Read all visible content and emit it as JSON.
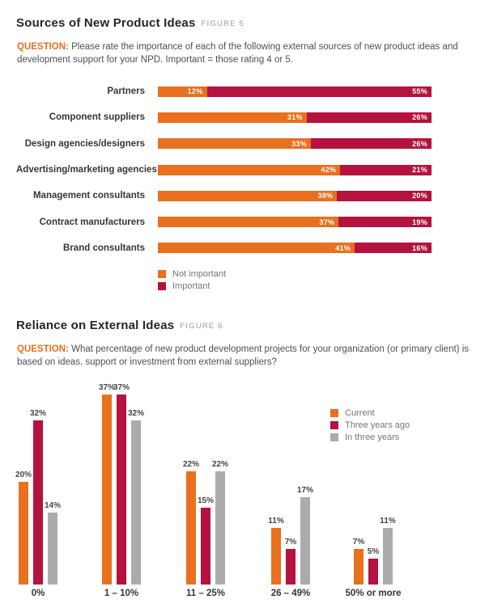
{
  "figure5": {
    "title": "Sources of New Product Ideas",
    "figure_label": "FIGURE 5",
    "question_label": "QUESTION:",
    "question_text": "Please rate the importance of each of the following external sources of new product ideas and development support for your NPD. Important = those rating 4 or 5."
  },
  "figure6": {
    "title": "Reliance on External Ideas",
    "figure_label": "FIGURE 6",
    "question_label": "QUESTION:",
    "question_text": "What percentage of new product development projects for your organization (or primary client) is based on ideas, support or investment from external suppliers?"
  },
  "colors": {
    "orange": "#E8701E",
    "crimson": "#B5123F",
    "gray": "#ABABAB",
    "heading_text": "#262626",
    "figure_label_text": "#9A9A9A",
    "body_text": "#4F4F4F",
    "question_label_text": "#E8701E",
    "legend_text": "#757575",
    "bar_value_text_inside": "#FFFFFF",
    "bar_value_text_above": "#454545"
  },
  "chart_data": [
    {
      "type": "bar",
      "orientation": "horizontal",
      "stacking": "100%",
      "title": "Sources of New Product Ideas",
      "figure": "FIGURE 5",
      "categories": [
        "Partners",
        "Component suppliers",
        "Design agencies/designers",
        "Advertising/marketing agencies",
        "Management consultants",
        "Contract manufacturers",
        "Brand consultants"
      ],
      "series": [
        {
          "name": "Not important",
          "color": "#E8701E",
          "values": [
            12,
            31,
            33,
            42,
            38,
            37,
            41
          ]
        },
        {
          "name": "Important",
          "color": "#B5123F",
          "values": [
            55,
            26,
            26,
            21,
            20,
            19,
            16
          ]
        }
      ],
      "value_suffix": "%",
      "value_labels": "inside segment end, white",
      "legend_position": "below left",
      "grid": false,
      "axis_lines": "none"
    },
    {
      "type": "bar",
      "orientation": "vertical",
      "grouping": "grouped",
      "title": "Reliance on External Ideas",
      "figure": "FIGURE 6",
      "categories": [
        "0%",
        "1 – 10%",
        "11 – 25%",
        "26 – 49%",
        "50% or more"
      ],
      "series": [
        {
          "name": "Current",
          "color": "#E8701E",
          "values": [
            20,
            37,
            22,
            11,
            7
          ]
        },
        {
          "name": "Three years ago",
          "color": "#B5123F",
          "values": [
            32,
            37,
            15,
            7,
            5
          ]
        },
        {
          "name": "In three years",
          "color": "#ABABAB",
          "values": [
            14,
            32,
            22,
            17,
            11
          ]
        }
      ],
      "value_suffix": "%",
      "value_labels": "above bars",
      "ylim": [
        0,
        40
      ],
      "legend_position": "upper right",
      "grid": false,
      "axis_lines": "none"
    }
  ]
}
